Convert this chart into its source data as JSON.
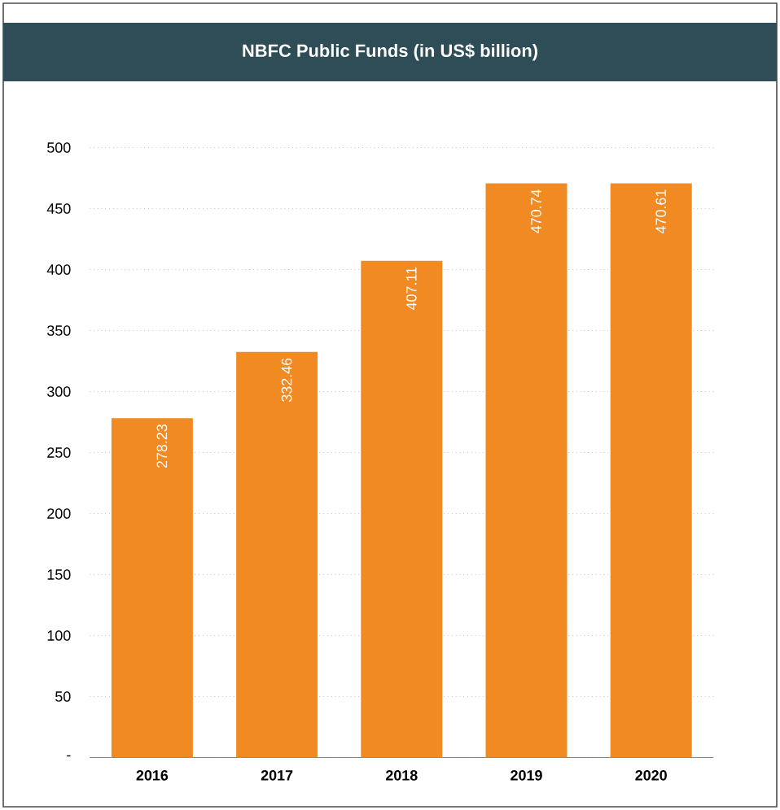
{
  "chart_data": {
    "type": "bar",
    "title": "NBFC Public Funds (in US$ billion)",
    "categories": [
      "2016",
      "2017",
      "2018",
      "2019",
      "2020"
    ],
    "values": [
      278.23,
      332.46,
      407.11,
      470.74,
      470.61
    ],
    "color": "#f28a24",
    "ylim": [
      0,
      500
    ],
    "yticks": [
      {
        "value": 0,
        "label": "-"
      },
      50,
      100,
      150,
      200,
      250,
      300,
      350,
      400,
      450,
      500
    ],
    "grid": "y",
    "data_labels": true
  }
}
